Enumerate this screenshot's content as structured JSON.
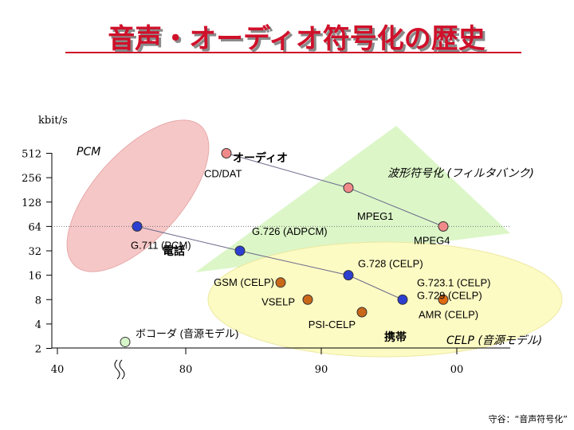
{
  "title": "音声・オーディオ符号化の歴史",
  "source": "守谷：“音声符号化”",
  "chart_data": {
    "type": "scatter",
    "ylabel": "kbit/s",
    "y_scale": "log2",
    "ylim": [
      2,
      512
    ],
    "y_ticks": [
      {
        "value": 512,
        "label": "512"
      },
      {
        "value": 256,
        "label": "256"
      },
      {
        "value": 128,
        "label": "128"
      },
      {
        "value": 64,
        "label": "64"
      },
      {
        "value": 32,
        "label": "32"
      },
      {
        "value": 16,
        "label": "16"
      },
      {
        "value": 8,
        "label": "8"
      },
      {
        "value": 4,
        "label": "4"
      },
      {
        "value": 2,
        "label": "2"
      }
    ],
    "x_ticks": [
      {
        "value": 1940,
        "label": "40"
      },
      {
        "value": 1980,
        "label": "80"
      },
      {
        "value": 1990,
        "label": "90"
      },
      {
        "value": 2000,
        "label": "00"
      }
    ],
    "x_break": "40–80",
    "region_labels": {
      "pcm": "PCM",
      "audio": "オーディオ",
      "waveform": "波形符号化 (フィルタバンク)",
      "telephone": "電話",
      "celp": "CELP (音源モデル)",
      "mobile": "携帯"
    },
    "points": [
      {
        "label": "G.711 (PCM)",
        "year": 1972,
        "kbps": 64,
        "color": "#2c3fd0"
      },
      {
        "label": "CD/DAT",
        "year": 1983,
        "kbps": 512,
        "color": "#f08a8a"
      },
      {
        "label": "MPEG1",
        "year": 1992,
        "kbps": 192,
        "color": "#f08a8a"
      },
      {
        "label": "MPEG4",
        "year": 1999,
        "kbps": 64,
        "color": "#f08a8a"
      },
      {
        "label": "G.726 (ADPCM)",
        "year": 1984,
        "kbps": 32,
        "color": "#2c3fd0"
      },
      {
        "label": "G.728 (CELP)",
        "year": 1992,
        "kbps": 16,
        "color": "#2c3fd0"
      },
      {
        "label": "G.723.1 (CELP)\nG.729 (CELP)",
        "year": 1996,
        "kbps": 8,
        "color": "#2c3fd0"
      },
      {
        "label": "AMR (CELP)",
        "year": 1999,
        "kbps": 8,
        "color": "#e06a10"
      },
      {
        "label": "GSM (CELP)",
        "year": 1987,
        "kbps": 13,
        "color": "#c86818"
      },
      {
        "label": "VSELP",
        "year": 1989,
        "kbps": 8,
        "color": "#c86818"
      },
      {
        "label": "PSI-CELP",
        "year": 1993,
        "kbps": 5.6,
        "color": "#c86818"
      },
      {
        "label": "ボコーダ (音源モデル)",
        "year": 1970,
        "kbps": 2.4,
        "color": "#d6f5c8"
      }
    ],
    "trend_lines": [
      [
        "CD/DAT",
        "MPEG1",
        "MPEG4"
      ],
      [
        "G.711 (PCM)",
        "G.726 (ADPCM)",
        "G.728 (CELP)",
        "G.723.1 (CELP)\nG.729 (CELP)"
      ]
    ]
  }
}
